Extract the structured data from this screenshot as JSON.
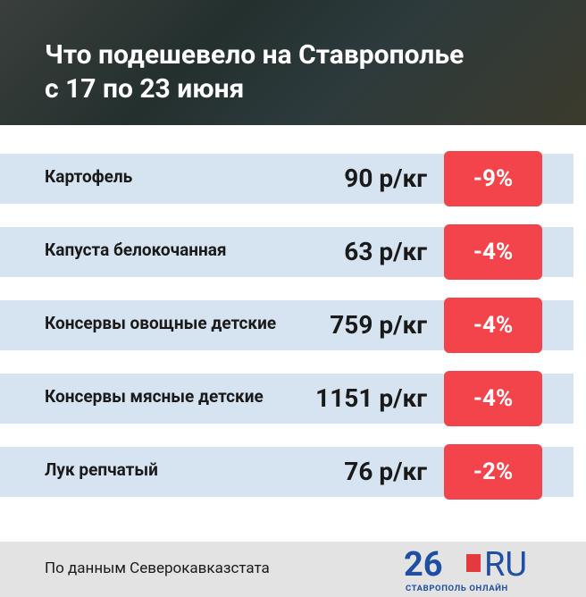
{
  "header": {
    "title_lines": [
      "Что подешевело на Ставрополье",
      "с 17 по 23 июня"
    ]
  },
  "table": {
    "rows": [
      {
        "name": "Картофель",
        "price": "90 р/кг",
        "change": "-9%"
      },
      {
        "name": "Капуста белокочанная",
        "price": "63 р/кг",
        "change": "-4%"
      },
      {
        "name": "Консервы овощные детские",
        "price": "759 р/кг",
        "change": "-4%"
      },
      {
        "name": "Консервы мясные детские",
        "price": "1151 р/кг",
        "change": "-4%"
      },
      {
        "name": "Лук репчатый",
        "price": "76 р/кг",
        "change": "-2%"
      }
    ]
  },
  "footer": {
    "source": "По данным Северокавказстата",
    "logo": {
      "number": "26",
      "domain": "RU",
      "tagline": "СТАВРОПОЛЬ ОНЛАЙН"
    }
  }
}
